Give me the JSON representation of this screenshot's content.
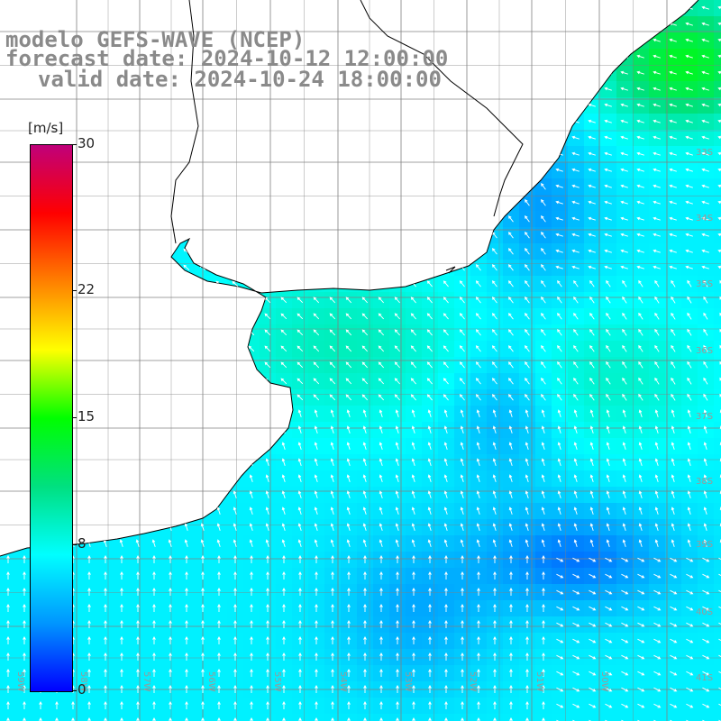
{
  "header": {
    "line1": "modelo GEFS-WAVE (NCEP)",
    "line2": "forecast date: 2024-10-12 12:00:00",
    "line3": "valid date: 2024-10-24 18:00:00"
  },
  "colorbar": {
    "unit": "[m/s]",
    "ticks": [
      {
        "label": "30",
        "value": 30
      },
      {
        "label": "22",
        "value": 22
      },
      {
        "label": "15",
        "value": 15
      },
      {
        "label": "8",
        "value": 8
      },
      {
        "label": "0",
        "value": 0
      }
    ],
    "range": [
      0,
      30
    ],
    "colors": [
      "#0000ff",
      "#0096ff",
      "#00ffff",
      "#00e080",
      "#00ff00",
      "#ffff00",
      "#ff8000",
      "#ff0000",
      "#c0007a"
    ]
  },
  "map": {
    "lat_labels": [
      "33S",
      "34S",
      "35S",
      "36S",
      "37S",
      "38S",
      "39S",
      "40S",
      "41S"
    ],
    "lon_labels": [
      "59W",
      "58W",
      "57W",
      "56W",
      "55W",
      "54W",
      "53W",
      "52W",
      "51W",
      "50W"
    ],
    "land_color": "#ffffff",
    "grid_color": "#808080",
    "coast_color": "#000000"
  }
}
